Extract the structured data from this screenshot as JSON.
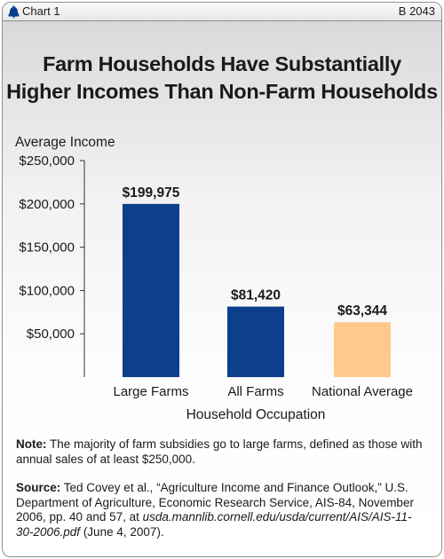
{
  "header": {
    "chart_label": "Chart 1",
    "chart_number": "B 2043"
  },
  "title_lines": [
    "Farm Households Have Substantially",
    "Higher Incomes Than Non-Farm Households"
  ],
  "chart_data": {
    "type": "bar",
    "title": "Farm Households Have Substantially Higher Incomes Than Non-Farm Households",
    "ylabel": "Average Income",
    "xlabel": "Household Occupation",
    "ylim": [
      0,
      250000
    ],
    "y_ticks": [
      50000,
      100000,
      150000,
      200000,
      250000
    ],
    "y_tick_labels": [
      "$50,000",
      "$100,000",
      "$150,000",
      "$200,000",
      "$250,000"
    ],
    "categories": [
      "Large Farms",
      "All Farms",
      "National Average"
    ],
    "values": [
      199975,
      81420,
      63344
    ],
    "value_labels": [
      "$199,975",
      "$81,420",
      "$63,344"
    ],
    "colors": [
      "#0c3f8c",
      "#0c3f8c",
      "#ffc98c"
    ],
    "grid": false
  },
  "note": {
    "label": "Note:",
    "text": " The majority of farm subsidies go to large farms, defined as those with annual sales of at least $250,000."
  },
  "source": {
    "label": "Source:",
    "text": " Ted Covey et al., “Agriculture Income and Finance Outlook,” U.S. Department of Agriculture, Economic Research Service, AIS-84, November 2006, pp. 40 and 57, at ",
    "url": "usda.mannlib.cornell.edu/usda/current/AIS/AIS-11-30-2006.pdf",
    "date": " (June 4, 2007)."
  },
  "colors": {
    "bar_primary": "#0c3f8c",
    "bar_highlight": "#ffc98c",
    "logo": "#0c3f8c"
  },
  "icons": {
    "logo": "liberty-bell-icon"
  }
}
